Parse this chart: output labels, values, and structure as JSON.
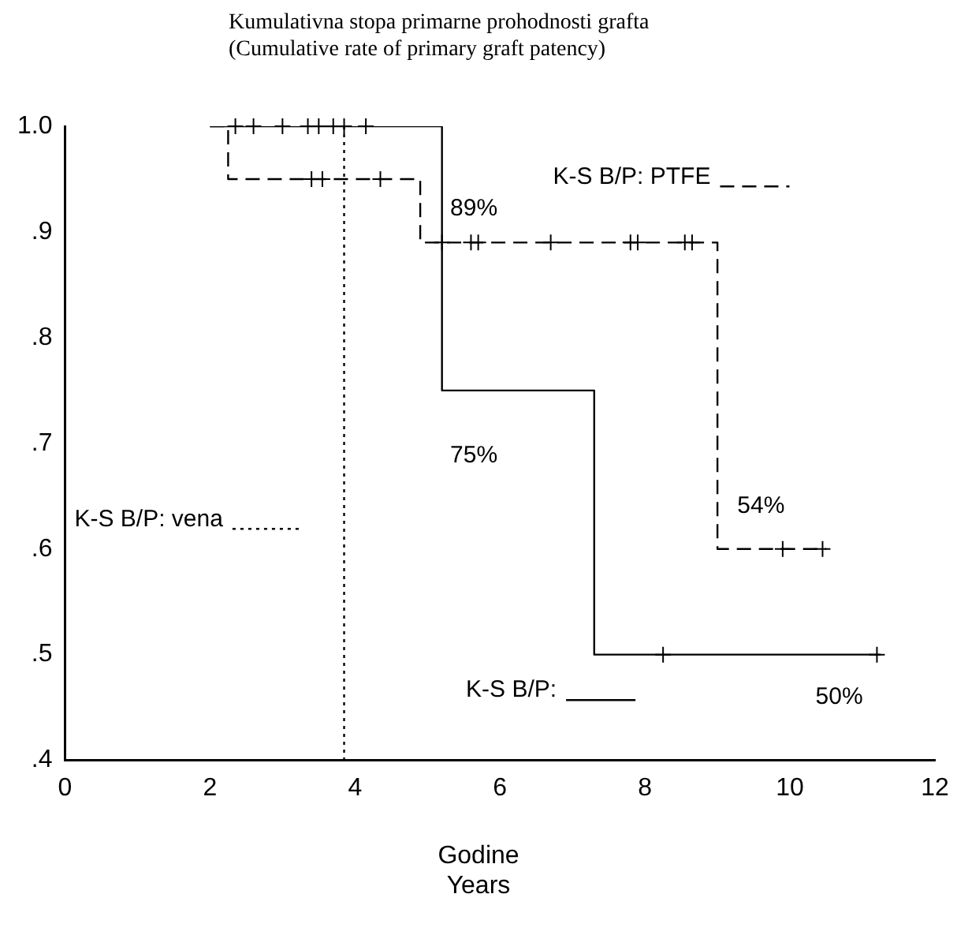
{
  "chart_data": {
    "type": "step",
    "title": "Kumulativna stopa primarne prohodnosti grafta",
    "subtitle": "(Cumulative rate of  primary graft patency)",
    "xlabel": "Godine\nYears",
    "xlim": [
      0,
      12
    ],
    "xticks": [
      0,
      2,
      4,
      6,
      8,
      10,
      12
    ],
    "ylim": [
      0.4,
      1.0
    ],
    "yticks": [
      {
        "value": 0.4,
        "label": ".4"
      },
      {
        "value": 0.5,
        "label": ".5"
      },
      {
        "value": 0.6,
        "label": ".6"
      },
      {
        "value": 0.7,
        "label": ".7"
      },
      {
        "value": 0.8,
        "label": ".8"
      },
      {
        "value": 0.9,
        "label": ".9"
      },
      {
        "value": 1.0,
        "label": "1.0"
      }
    ],
    "grid": false,
    "legend": "top left",
    "series": [
      {
        "name": "K-S B/P:",
        "color": "#000000",
        "line_style": "solid",
        "x": [
          2,
          5.2,
          7.3,
          11.25
        ],
        "values": [
          1.0,
          0.75,
          0.5,
          0.5
        ]
      },
      {
        "name": "K-S B/P: PTFE",
        "color": "#000000",
        "line_style": "dashed",
        "x": [
          2,
          2.25,
          4.9,
          9.0,
          10.5
        ],
        "values": [
          1.0,
          0.95,
          0.89,
          0.6,
          0.6
        ]
      },
      {
        "name": "K-S B/P: vena",
        "color": "#000000",
        "line_style": "dotted",
        "x": [
          3.85,
          3.85
        ],
        "values": [
          1.0,
          0.4
        ]
      },
      {
        "type": "scatter",
        "marker": "cross",
        "color": "#000000",
        "x": [
          2.35,
          2.6,
          3.0,
          3.35,
          3.5,
          3.7,
          3.85,
          4.15,
          8.25,
          11.2
        ],
        "values": [
          1.0,
          1.0,
          1.0,
          1.0,
          1.0,
          1.0,
          1.0,
          1.0,
          0.5,
          0.5
        ]
      },
      {
        "type": "scatter",
        "marker": "cross",
        "color": "#000000",
        "x": [
          3.4,
          3.55,
          4.35,
          5.2,
          5.6,
          5.7,
          6.7,
          7.8,
          7.9,
          8.55,
          8.65,
          9.9,
          10.45
        ],
        "values": [
          0.95,
          0.95,
          0.95,
          0.89,
          0.89,
          0.89,
          0.89,
          0.89,
          0.89,
          0.89,
          0.89,
          0.6,
          0.6
        ]
      }
    ],
    "annotations": [
      "89%",
      "75%",
      "54%",
      "50%"
    ]
  }
}
